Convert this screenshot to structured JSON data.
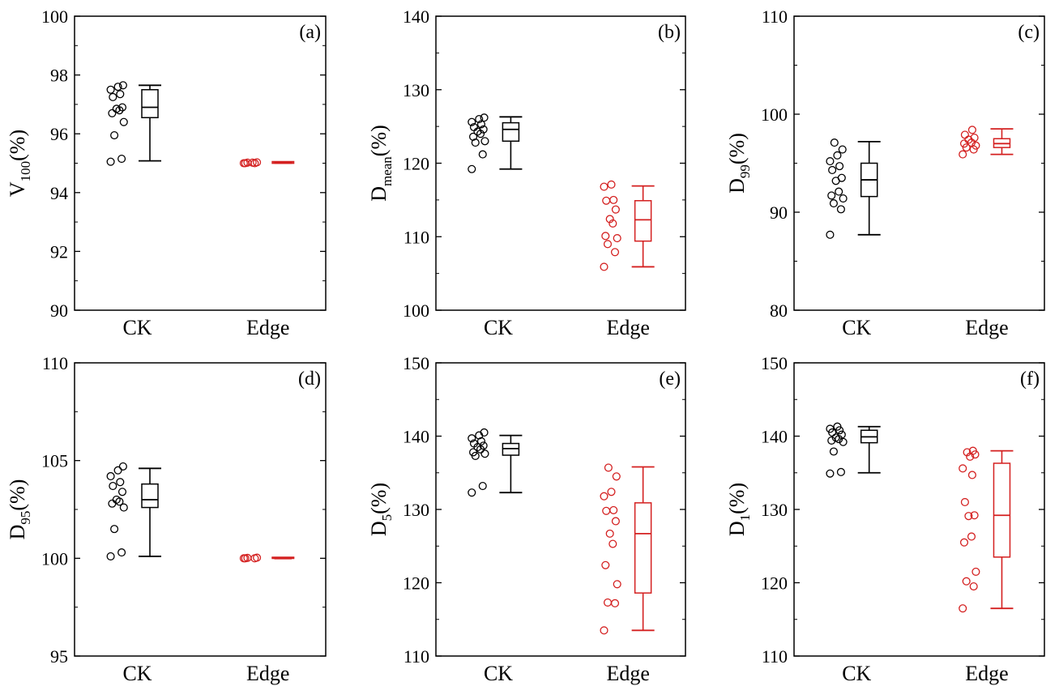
{
  "colors": {
    "CK": "#000000",
    "Edge": "#d42020",
    "axis": "#000000"
  },
  "chart_data": [
    {
      "type": "box",
      "panel_label": "(a)",
      "ylabel": {
        "main": "V",
        "sub": "100",
        "tail": "(%)"
      },
      "ylim": [
        90,
        100
      ],
      "yticks": [
        90,
        92,
        94,
        96,
        98,
        100
      ],
      "categories": [
        "CK",
        "Edge"
      ],
      "groups": [
        {
          "name": "CK",
          "points": [
            95.05,
            95.15,
            95.95,
            96.4,
            96.7,
            96.8,
            96.85,
            96.9,
            97.25,
            97.35,
            97.5,
            97.6,
            97.65
          ],
          "box": {
            "whisker_low": 95.08,
            "q1": 96.55,
            "median": 96.9,
            "q3": 97.5,
            "whisker_high": 97.65
          }
        },
        {
          "name": "Edge",
          "points": [
            95.0,
            95.0,
            95.02,
            95.03,
            95.0,
            95.02
          ],
          "box": {
            "whisker_low": 95.0,
            "q1": 95.0,
            "median": 95.02,
            "q3": 95.04,
            "whisker_high": 95.05
          }
        }
      ]
    },
    {
      "type": "box",
      "panel_label": "(b)",
      "ylabel": {
        "main": "D",
        "sub": "mean",
        "tail": "(%)"
      },
      "ylim": [
        100,
        140
      ],
      "yticks": [
        100,
        110,
        120,
        130,
        140
      ],
      "categories": [
        "CK",
        "Edge"
      ],
      "groups": [
        {
          "name": "CK",
          "points": [
            119.2,
            121.2,
            122.8,
            123.0,
            123.6,
            124.0,
            124.3,
            124.6,
            124.9,
            125.3,
            125.6,
            126.0,
            126.2
          ],
          "box": {
            "whisker_low": 119.2,
            "q1": 123.0,
            "median": 124.6,
            "q3": 125.5,
            "whisker_high": 126.3
          }
        },
        {
          "name": "Edge",
          "points": [
            105.9,
            107.9,
            109.0,
            109.8,
            110.1,
            111.8,
            112.4,
            113.7,
            114.9,
            115.0,
            116.8,
            117.1
          ],
          "box": {
            "whisker_low": 105.9,
            "q1": 109.4,
            "median": 112.3,
            "q3": 114.9,
            "whisker_high": 116.9
          }
        }
      ]
    },
    {
      "type": "box",
      "panel_label": "(c)",
      "ylabel": {
        "main": "D",
        "sub": "99",
        "tail": "(%)"
      },
      "ylim": [
        80,
        110
      ],
      "yticks": [
        80,
        90,
        100,
        110
      ],
      "categories": [
        "CK",
        "Edge"
      ],
      "groups": [
        {
          "name": "CK",
          "points": [
            87.7,
            90.3,
            90.9,
            91.4,
            91.7,
            92.1,
            93.2,
            93.5,
            94.3,
            94.7,
            95.2,
            95.8,
            96.4,
            97.1
          ],
          "box": {
            "whisker_low": 87.7,
            "q1": 91.6,
            "median": 93.3,
            "q3": 95.0,
            "whisker_high": 97.2
          }
        },
        {
          "name": "Edge",
          "points": [
            95.9,
            96.4,
            96.6,
            96.8,
            97.0,
            97.1,
            97.4,
            97.6,
            97.9,
            98.4
          ],
          "box": {
            "whisker_low": 95.9,
            "q1": 96.6,
            "median": 97.0,
            "q3": 97.5,
            "whisker_high": 98.5
          }
        }
      ]
    },
    {
      "type": "box",
      "panel_label": "(d)",
      "ylabel": {
        "main": "D",
        "sub": "95",
        "tail": "(%)"
      },
      "ylim": [
        95,
        110
      ],
      "yticks": [
        95,
        100,
        105,
        110
      ],
      "categories": [
        "CK",
        "Edge"
      ],
      "groups": [
        {
          "name": "CK",
          "points": [
            100.1,
            100.3,
            101.5,
            102.6,
            102.8,
            102.9,
            103.0,
            103.4,
            103.7,
            103.9,
            104.2,
            104.5,
            104.7
          ],
          "box": {
            "whisker_low": 100.1,
            "q1": 102.6,
            "median": 103.0,
            "q3": 103.8,
            "whisker_high": 104.6
          }
        },
        {
          "name": "Edge",
          "points": [
            100.0,
            100.0,
            100.02,
            100.03,
            100.0
          ],
          "box": {
            "whisker_low": 100.0,
            "q1": 100.0,
            "median": 100.02,
            "q3": 100.04,
            "whisker_high": 100.05
          }
        }
      ]
    },
    {
      "type": "box",
      "panel_label": "(e)",
      "ylabel": {
        "main": "D",
        "sub": "5",
        "tail": "(%)"
      },
      "ylim": [
        110,
        150
      ],
      "yticks": [
        110,
        120,
        130,
        140,
        150
      ],
      "categories": [
        "CK",
        "Edge"
      ],
      "groups": [
        {
          "name": "CK",
          "points": [
            132.3,
            133.2,
            137.3,
            137.6,
            137.8,
            138.2,
            138.5,
            138.7,
            139.0,
            139.3,
            139.7,
            140.1,
            140.5
          ],
          "box": {
            "whisker_low": 132.3,
            "q1": 137.4,
            "median": 138.3,
            "q3": 139.0,
            "whisker_high": 140.1
          }
        },
        {
          "name": "Edge",
          "points": [
            113.5,
            117.2,
            117.3,
            119.8,
            122.4,
            125.3,
            126.7,
            128.4,
            129.8,
            129.9,
            131.8,
            132.4,
            134.5,
            135.7
          ],
          "box": {
            "whisker_low": 113.5,
            "q1": 118.6,
            "median": 126.7,
            "q3": 130.9,
            "whisker_high": 135.8
          }
        }
      ]
    },
    {
      "type": "box",
      "panel_label": "(f)",
      "ylabel": {
        "main": "D",
        "sub": "1",
        "tail": "(%)"
      },
      "ylim": [
        110,
        150
      ],
      "yticks": [
        110,
        120,
        130,
        140,
        150
      ],
      "categories": [
        "CK",
        "Edge"
      ],
      "groups": [
        {
          "name": "CK",
          "points": [
            134.9,
            135.1,
            137.9,
            139.2,
            139.4,
            139.6,
            139.8,
            140.2,
            140.5,
            140.8,
            141.0,
            141.3
          ],
          "box": {
            "whisker_low": 135.0,
            "q1": 139.1,
            "median": 139.9,
            "q3": 140.8,
            "whisker_high": 141.3
          }
        },
        {
          "name": "Edge",
          "points": [
            116.5,
            119.5,
            120.2,
            121.5,
            125.5,
            126.3,
            129.1,
            129.2,
            131.0,
            134.7,
            135.6,
            137.2,
            137.5,
            137.8,
            138.0
          ],
          "box": {
            "whisker_low": 116.5,
            "q1": 123.5,
            "median": 129.2,
            "q3": 136.3,
            "whisker_high": 138.0
          }
        }
      ]
    }
  ]
}
